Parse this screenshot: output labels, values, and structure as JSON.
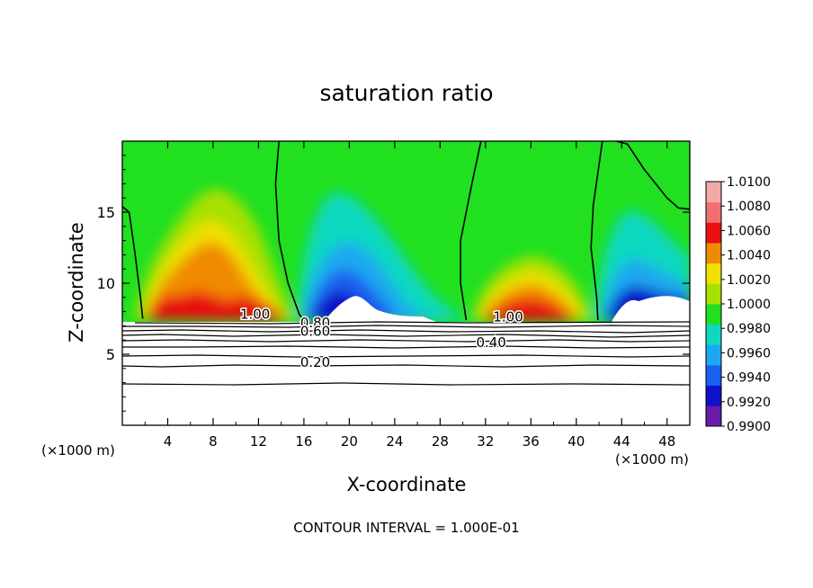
{
  "chart_data": {
    "type": "heatmap",
    "title": "saturation ratio",
    "xlabel": "X-coordinate",
    "ylabel": "Z-coordinate",
    "x_unit_left": "(×1000 m)",
    "x_unit_right": "(×1000 m)",
    "xlim": [
      0,
      50
    ],
    "ylim": [
      0,
      20
    ],
    "xticks": [
      4,
      8,
      12,
      16,
      20,
      24,
      28,
      32,
      36,
      40,
      44,
      48
    ],
    "yticks": [
      5,
      10,
      15
    ],
    "footer": "CONTOUR INTERVAL = 1.000E-01",
    "colorbar": {
      "levels": [
        "0.9900",
        "0.9920",
        "0.9940",
        "0.9960",
        "0.9980",
        "1.0000",
        "1.0020",
        "1.0040",
        "1.0060",
        "1.0080",
        "1.0100"
      ],
      "colors": [
        "#6a1aa8",
        "#1010c8",
        "#1a5ff0",
        "#1ea8f0",
        "#10d8c0",
        "#20e020",
        "#a8e000",
        "#f0e000",
        "#f08a00",
        "#e81010",
        "#f07070",
        "#f5a8a8"
      ]
    },
    "contour_labels": [
      {
        "text": "1.00",
        "x": 11.7,
        "z": 7.5
      },
      {
        "text": "0.80",
        "x": 17.0,
        "z": 6.9
      },
      {
        "text": "0.60",
        "x": 17.0,
        "z": 6.3
      },
      {
        "text": "1.00",
        "x": 34.0,
        "z": 7.3
      },
      {
        "text": "0.40",
        "x": 32.5,
        "z": 5.5
      },
      {
        "text": "0.20",
        "x": 17.0,
        "z": 4.1
      }
    ],
    "saturated_boundaries": [
      [
        [
          0,
          15.4
        ],
        [
          0.6,
          15.0
        ],
        [
          1.1,
          12.2
        ],
        [
          1.6,
          9.0
        ],
        [
          1.8,
          7.5
        ]
      ],
      [
        [
          13.8,
          20
        ],
        [
          13.5,
          17
        ],
        [
          13.8,
          13
        ],
        [
          14.6,
          10
        ],
        [
          15.6,
          7.8
        ],
        [
          16.0,
          7.4
        ]
      ],
      [
        [
          31.6,
          20
        ],
        [
          30.8,
          17
        ],
        [
          29.8,
          13
        ],
        [
          29.8,
          10
        ],
        [
          30.3,
          7.4
        ]
      ],
      [
        [
          42.3,
          20
        ],
        [
          41.5,
          15.5
        ],
        [
          41.3,
          12.5
        ],
        [
          41.8,
          9
        ],
        [
          41.9,
          7.4
        ]
      ],
      [
        [
          43.5,
          20
        ],
        [
          44.5,
          19.8
        ],
        [
          46,
          18
        ],
        [
          48,
          16
        ],
        [
          49,
          15.3
        ],
        [
          50,
          15.2
        ]
      ]
    ]
  }
}
